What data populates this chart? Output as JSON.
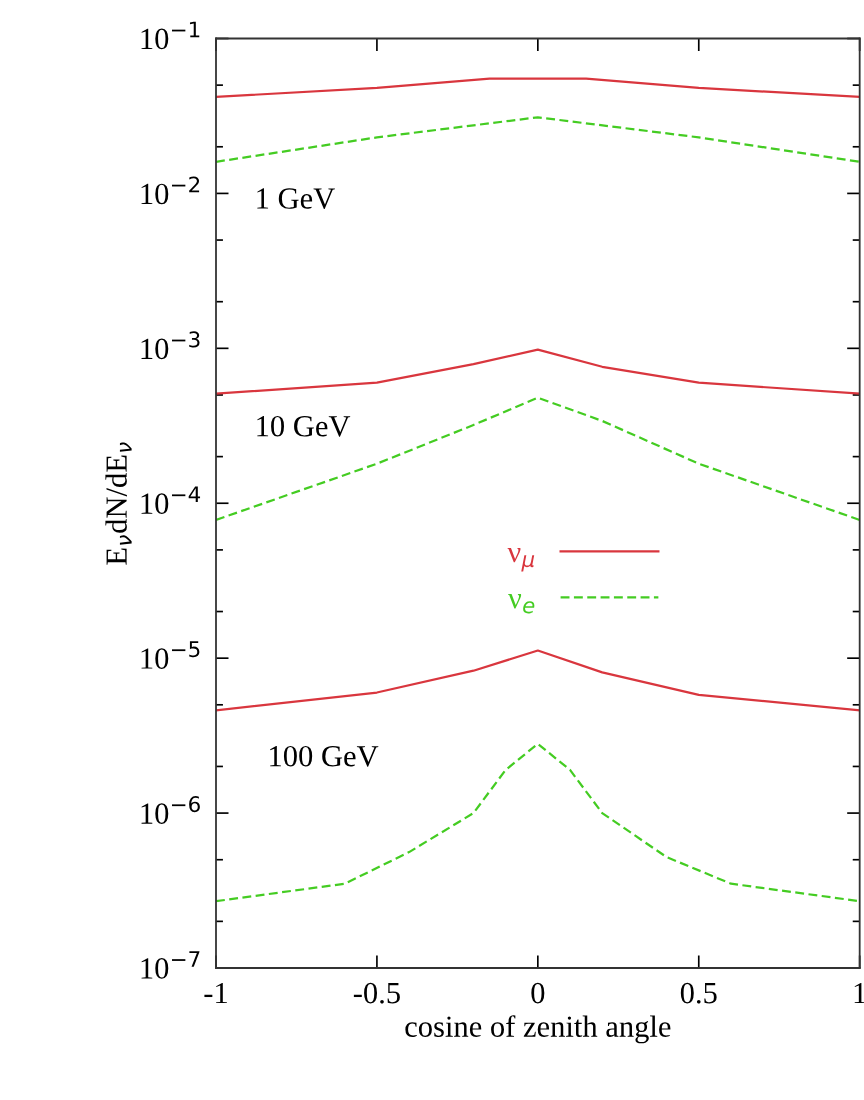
{
  "chart_data": {
    "type": "line",
    "xlabel": "cosine of zenith angle",
    "ylabel": "E$_{ν}$dN/dE$_{ν}$",
    "log": "y",
    "grid": false,
    "legend": "center",
    "xlim": [
      -1,
      1
    ],
    "ylim": [
      1e-07,
      0.1
    ],
    "xticks": [
      -1,
      {
        "value": -0.5,
        "label": "-0.5"
      },
      0,
      {
        "value": 0.5,
        "label": "0.5"
      },
      1
    ],
    "yticks": [
      {
        "value": 1e-07,
        "label": "10$^{−7}$"
      },
      {
        "value": 2e-07,
        "label": null
      },
      {
        "value": 5e-07,
        "label": null
      },
      {
        "value": 1e-06,
        "label": "10$^{−6}$"
      },
      {
        "value": 2e-06,
        "label": null
      },
      {
        "value": 5e-06,
        "label": null
      },
      {
        "value": 1e-05,
        "label": "10$^{−5}$"
      },
      {
        "value": 2e-05,
        "label": null
      },
      {
        "value": 5e-05,
        "label": null
      },
      {
        "value": 0.0001,
        "label": "10$^{−4}$"
      },
      {
        "value": 0.0002,
        "label": null
      },
      {
        "value": 0.0005,
        "label": null
      },
      {
        "value": 0.001,
        "label": "10$^{−3}$"
      },
      {
        "value": 0.002,
        "label": null
      },
      {
        "value": 0.005,
        "label": null
      },
      {
        "value": 0.01,
        "label": "10$^{−2}$"
      },
      {
        "value": 0.02,
        "label": null
      },
      {
        "value": 0.05,
        "label": null
      },
      {
        "value": 0.1,
        "label": "10$^{−1}$"
      }
    ],
    "series": [
      {
        "name": "ν$_{μ}$",
        "color": "#d9363e",
        "line_style": "solid",
        "x": [
          -1,
          -0.5,
          -0.15,
          0.15,
          0.5,
          1
        ],
        "values": [
          0.042,
          0.048,
          0.055,
          0.055,
          0.048,
          0.042
        ]
      },
      {
        "name": "ν$_{e}$",
        "color": "#44cc22",
        "line_style": "dashed",
        "x": [
          -1,
          -0.5,
          0,
          0.5,
          1
        ],
        "values": [
          0.016,
          0.023,
          0.031,
          0.023,
          0.016
        ]
      },
      {
        "color": "#d9363e",
        "line_style": "solid",
        "x": [
          -1,
          -0.5,
          -0.2,
          0,
          0.2,
          0.5,
          1
        ],
        "values": [
          0.00051,
          0.0006,
          0.00079,
          0.00098,
          0.00076,
          0.0006,
          0.00051
        ]
      },
      {
        "color": "#44cc22",
        "line_style": "dashed",
        "x": [
          -1,
          -0.5,
          -0.2,
          0,
          0.2,
          0.5,
          1
        ],
        "values": [
          7.8e-05,
          0.00018,
          0.00032,
          0.00048,
          0.00034,
          0.00018,
          7.8e-05
        ]
      },
      {
        "color": "#d9363e",
        "line_style": "solid",
        "x": [
          -1,
          -0.5,
          -0.2,
          0,
          0.2,
          0.5,
          1
        ],
        "values": [
          4.6e-06,
          6e-06,
          8.3e-06,
          1.12e-05,
          8.1e-06,
          5.8e-06,
          4.6e-06
        ]
      },
      {
        "color": "#44cc22",
        "line_style": "dashed",
        "x": [
          -1,
          -0.6,
          -0.4,
          -0.2,
          -0.1,
          0,
          0.1,
          0.2,
          0.4,
          0.6,
          1
        ],
        "values": [
          2.7e-07,
          3.5e-07,
          5.6e-07,
          1e-06,
          1.9e-06,
          2.8e-06,
          1.9e-06,
          1e-06,
          5.2e-07,
          3.5e-07,
          2.7e-07
        ]
      }
    ],
    "annotations": [
      "1 GeV",
      "10 GeV",
      "100 GeV"
    ]
  }
}
